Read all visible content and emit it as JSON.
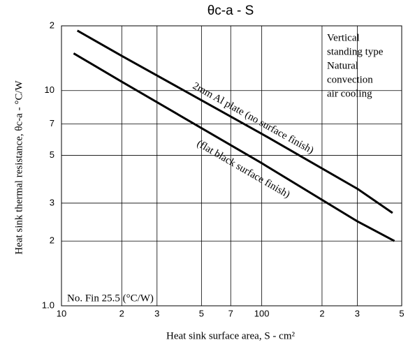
{
  "chart_data": {
    "type": "line",
    "title": "θc-a - S",
    "x_label": "Heat sink surface area, S - cm²",
    "y_label": "Heat sink thermal resistance, θc-a - °C/W",
    "log_x": true,
    "log_y": true,
    "grid": true,
    "xlim": [
      10,
      500
    ],
    "ylim": [
      1,
      20
    ],
    "xticks": [
      10,
      {
        "value": 20,
        "label": "2"
      },
      {
        "value": 30,
        "label": "3"
      },
      {
        "value": 50,
        "label": "5"
      },
      {
        "value": 70,
        "label": "7"
      },
      100,
      {
        "value": 200,
        "label": "2"
      },
      {
        "value": 300,
        "label": "3"
      },
      {
        "value": 500,
        "label": "5"
      }
    ],
    "yticks": [
      {
        "value": 1,
        "label": "1.0"
      },
      2,
      3,
      5,
      7,
      10,
      {
        "value": 20,
        "label": "2"
      }
    ],
    "series": [
      {
        "name": "2mm Al plate (no surface finish)",
        "color": "#000000",
        "x": [
          12,
          20,
          100,
          300,
          450
        ],
        "values": [
          19,
          14.5,
          6.3,
          3.5,
          2.7
        ]
      },
      {
        "name": "(flat black surface finish)",
        "color": "#000000",
        "x": [
          11.5,
          20,
          100,
          300,
          460
        ],
        "values": [
          14.9,
          11,
          4.6,
          2.47,
          2.0
        ]
      }
    ],
    "note_lines": [
      "Vertical",
      "standing type",
      "Natural",
      "convection",
      "air cooling"
    ],
    "corner_label": "No. Fin 25.5 (°C/W)"
  }
}
